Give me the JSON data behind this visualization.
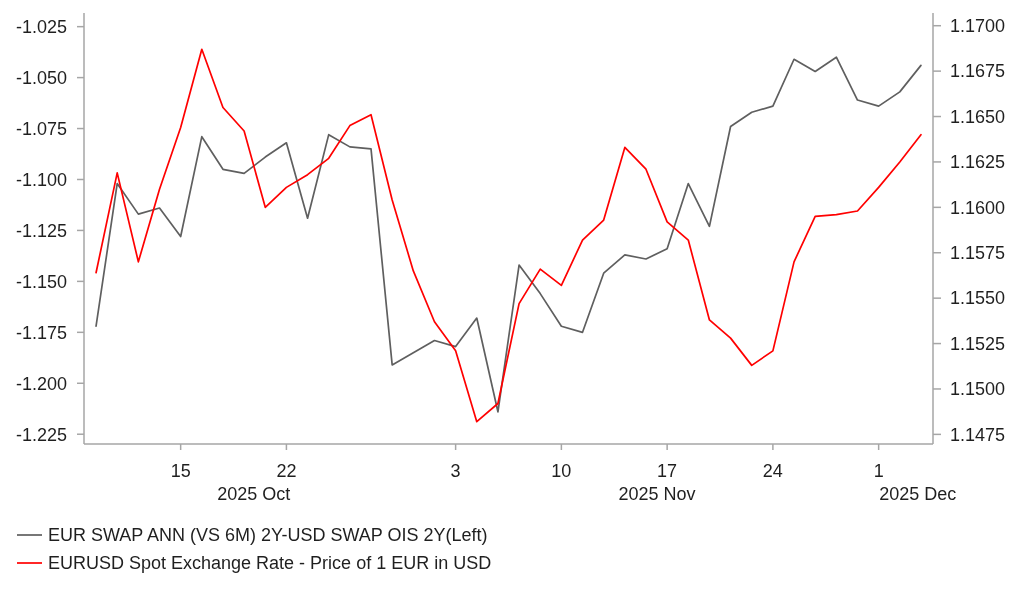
{
  "chart_data": {
    "type": "line",
    "categories": [
      null,
      null,
      null,
      null,
      "15",
      null,
      null,
      null,
      null,
      "22",
      null,
      null,
      null,
      null,
      null,
      null,
      null,
      "3",
      null,
      null,
      null,
      null,
      "10",
      null,
      null,
      null,
      null,
      "17",
      null,
      null,
      null,
      null,
      "24",
      null,
      null,
      null,
      null,
      "1",
      null,
      null
    ],
    "series": [
      {
        "name": "EUR SWAP ANN (VS 6M) 2Y-USD SWAP OIS 2Y(Left)",
        "color": "#5f5f5f",
        "values": [
          -1.172,
          -1.102,
          -1.117,
          -1.114,
          -1.128,
          -1.079,
          -1.095,
          -1.097,
          -1.089,
          -1.082,
          -1.119,
          -1.078,
          -1.084,
          -1.085,
          -1.191,
          -1.185,
          -1.179,
          -1.182,
          -1.168,
          -1.214,
          -1.142,
          -1.156,
          -1.172,
          -1.175,
          -1.146,
          -1.137,
          -1.139,
          -1.134,
          -1.102,
          -1.123,
          -1.074,
          -1.067,
          -1.064,
          -1.041,
          -1.047,
          -1.04,
          -1.061,
          -1.064,
          -1.057,
          -1.044
        ]
      },
      {
        "name": "EURUSD Spot Exchange Rate - Price of 1 EUR in USD",
        "color": "#ff0000",
        "axis": "y2",
        "values": [
          1.1564,
          1.1619,
          1.157,
          1.161,
          1.1644,
          1.1687,
          1.1655,
          1.1642,
          1.16,
          1.1611,
          1.1618,
          1.1627,
          1.1645,
          1.1651,
          1.1604,
          1.1565,
          1.1537,
          1.1521,
          1.1482,
          1.1492,
          1.1547,
          1.1566,
          1.1557,
          1.1582,
          1.1593,
          1.1633,
          1.1621,
          1.1592,
          1.1582,
          1.1538,
          1.1528,
          1.1513,
          1.1521,
          1.157,
          1.1595,
          1.1596,
          1.1598,
          1.1611,
          1.1625,
          1.164
        ]
      }
    ],
    "ylim": [
      -1.2298,
      -1.0183
    ],
    "yticks": [
      -1.225,
      {
        "value": -1.2,
        "label": "-1.200"
      },
      -1.175,
      {
        "value": -1.15,
        "label": "-1.150"
      },
      -1.125,
      {
        "value": -1.1,
        "label": "-1.100"
      },
      -1.075,
      {
        "value": -1.05,
        "label": "-1.050"
      },
      -1.025
    ],
    "y2lim": [
      1.14697,
      1.1707
    ],
    "y2ticks": [
      1.1475,
      {
        "value": 1.15,
        "label": "1.1500"
      },
      1.1525,
      {
        "value": 1.155,
        "label": "1.1550"
      },
      1.1575,
      {
        "value": 1.16,
        "label": "1.1600"
      },
      1.1625,
      {
        "value": 1.165,
        "label": "1.1650"
      },
      1.1675,
      {
        "value": 1.17,
        "label": "1.1700"
      }
    ],
    "annotations": [
      "2025 Oct",
      "2025 Nov",
      "2025 Dec"
    ],
    "legend": "bottom"
  }
}
